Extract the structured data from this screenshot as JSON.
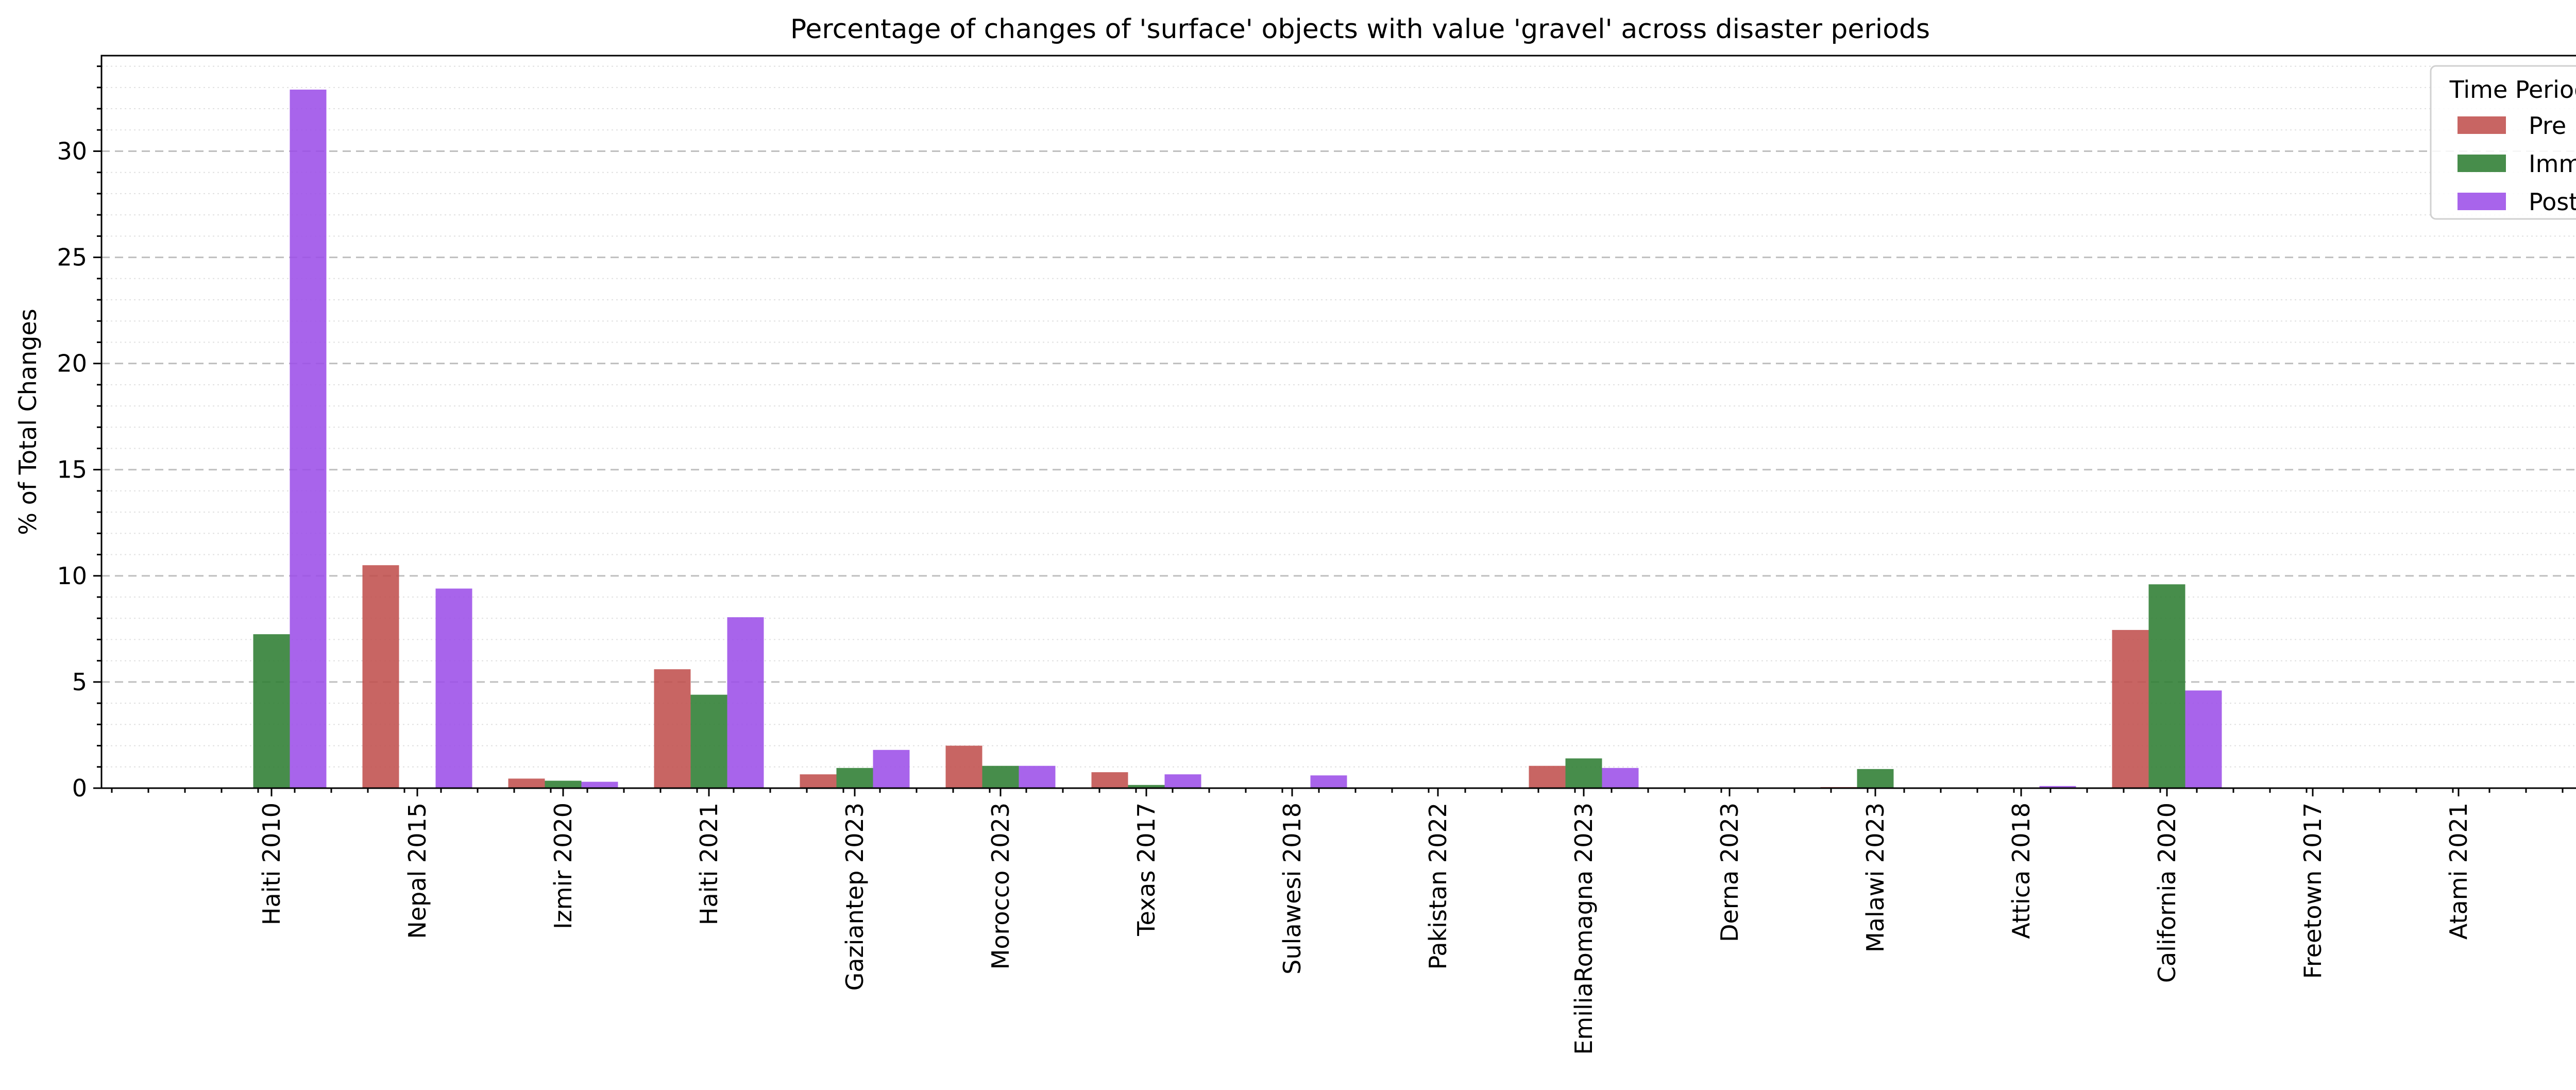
{
  "chart_data": {
    "type": "bar",
    "title": "Percentage of changes of 'surface' objects with value 'gravel' across disaster periods",
    "xlabel": "",
    "ylabel": "% of Total Changes",
    "ylim": [
      0,
      34.5
    ],
    "yticks": [
      0,
      5,
      10,
      15,
      20,
      25,
      30
    ],
    "grid": {
      "major": "dashed",
      "minor": "dotted"
    },
    "legend": {
      "title": "Time Period",
      "placement": "top-right"
    },
    "categories": [
      "Haiti 2010",
      "Nepal 2015",
      "Izmir 2020",
      "Haiti 2021",
      "Gaziantep 2023",
      "Morocco 2023",
      "Texas 2017",
      "Sulawesi 2018",
      "Pakistan 2022",
      "EmiliaRomagna 2023",
      "Derna 2023",
      "Malawi 2023",
      "Attica 2018",
      "California 2020",
      "Freetown 2017",
      "Atami 2021"
    ],
    "series": [
      {
        "name": "Pre",
        "color": "#c0504d",
        "values": [
          0,
          10.5,
          0.45,
          5.6,
          0.65,
          2.0,
          0.75,
          0,
          0,
          1.05,
          0,
          0.05,
          0,
          7.45,
          0,
          0
        ]
      },
      {
        "name": "Imm",
        "color": "#2e7d32",
        "values": [
          7.25,
          0,
          0.35,
          4.4,
          0.95,
          1.05,
          0.15,
          0,
          0,
          1.4,
          0,
          0.9,
          0,
          9.6,
          0,
          0
        ]
      },
      {
        "name": "Post",
        "color": "#9c4fe8",
        "values": [
          32.9,
          9.4,
          0.3,
          8.05,
          1.8,
          1.05,
          0.65,
          0.6,
          0,
          0.95,
          0,
          0,
          0.1,
          4.6,
          0,
          0
        ]
      }
    ]
  }
}
